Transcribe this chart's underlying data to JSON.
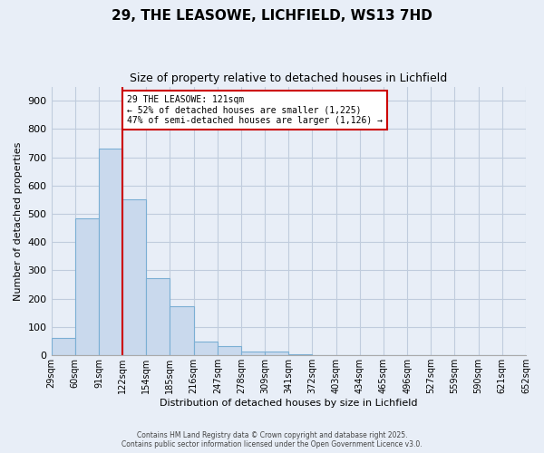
{
  "title": "29, THE LEASOWE, LICHFIELD, WS13 7HD",
  "subtitle": "Size of property relative to detached houses in Lichfield",
  "xlabel": "Distribution of detached houses by size in Lichfield",
  "ylabel": "Number of detached properties",
  "bar_values": [
    60,
    485,
    730,
    553,
    272,
    175,
    49,
    33,
    14,
    12,
    4,
    0,
    0,
    0,
    0,
    0,
    0,
    0,
    0,
    0
  ],
  "bin_labels": [
    "29sqm",
    "60sqm",
    "91sqm",
    "122sqm",
    "154sqm",
    "185sqm",
    "216sqm",
    "247sqm",
    "278sqm",
    "309sqm",
    "341sqm",
    "372sqm",
    "403sqm",
    "434sqm",
    "465sqm",
    "496sqm",
    "527sqm",
    "559sqm",
    "590sqm",
    "621sqm",
    "652sqm"
  ],
  "bar_color": "#c9d9ed",
  "bar_edge_color": "#7bafd4",
  "bar_width": 1.0,
  "vline_x": 3,
  "vline_color": "#cc0000",
  "annotation_title": "29 THE LEASOWE: 121sqm",
  "annotation_line1": "← 52% of detached houses are smaller (1,225)",
  "annotation_line2": "47% of semi-detached houses are larger (1,126) →",
  "annotation_box_color": "#cc0000",
  "ylim": [
    0,
    950
  ],
  "yticks": [
    0,
    100,
    200,
    300,
    400,
    500,
    600,
    700,
    800,
    900
  ],
  "grid_color": "#c0ccdd",
  "background_color": "#e8eef7",
  "footnote1": "Contains HM Land Registry data © Crown copyright and database right 2025.",
  "footnote2": "Contains public sector information licensed under the Open Government Licence v3.0."
}
